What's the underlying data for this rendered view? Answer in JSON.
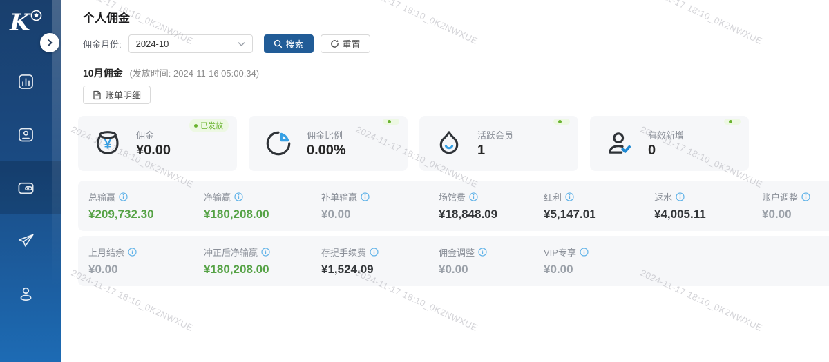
{
  "watermark": {
    "text": "2024-11-17 18:10_0K2NWXUE"
  },
  "sidebar": {
    "logo_text": "K",
    "items": [
      {
        "id": "stats",
        "icon": "bar-chart-icon",
        "active": false
      },
      {
        "id": "members",
        "icon": "id-card-icon",
        "active": false
      },
      {
        "id": "wallet",
        "icon": "wallet-icon",
        "active": true
      },
      {
        "id": "promote",
        "icon": "send-icon",
        "active": false
      },
      {
        "id": "profile",
        "icon": "user-icon",
        "active": false
      }
    ]
  },
  "header": {
    "title": "个人佣金"
  },
  "filter": {
    "label": "佣金月份:",
    "month_value": "2024-10",
    "search_label": "搜索",
    "reset_label": "重置"
  },
  "period": {
    "title": "10月佣金",
    "issue_time": "(发放时间: 2024-11-16 05:00:34)",
    "bill_detail_label": "账单明细"
  },
  "stat_cards": [
    {
      "label": "佣金",
      "value": "¥0.00",
      "icon": "money-pot-icon",
      "badge": "已发放"
    },
    {
      "label": "佣金比例",
      "value": "0.00%",
      "icon": "pie-chart-icon"
    },
    {
      "label": "活跃会员",
      "value": "1",
      "icon": "flame-icon"
    },
    {
      "label": "有效新增",
      "value": "0",
      "icon": "user-check-icon"
    }
  ],
  "summary_rows": [
    [
      {
        "label": "总输赢",
        "value": "¥209,732.30",
        "tone": "green"
      },
      {
        "label": "净输赢",
        "value": "¥180,208.00",
        "tone": "green"
      },
      {
        "label": "补单输赢",
        "value": "¥0.00",
        "tone": "gray",
        "info": true
      },
      {
        "label": "场馆费",
        "value": "¥18,848.09",
        "tone": "dark"
      },
      {
        "label": "红利",
        "value": "¥5,147.01",
        "tone": "dark"
      },
      {
        "label": "返水",
        "value": "¥4,005.11",
        "tone": "dark"
      },
      {
        "label": "账户调整",
        "value": "¥0.00",
        "tone": "gray"
      }
    ],
    [
      {
        "label": "上月结余",
        "value": "¥0.00",
        "tone": "gray"
      },
      {
        "label": "冲正后净输赢",
        "value": "¥180,208.00",
        "tone": "green"
      },
      {
        "label": "存提手续费",
        "value": "¥1,524.09",
        "tone": "dark"
      },
      {
        "label": "佣金调整",
        "value": "¥0.00",
        "tone": "gray",
        "info": true
      },
      {
        "label": "VIP专享",
        "value": "¥0.00",
        "tone": "gray",
        "info": true
      }
    ]
  ],
  "colors": {
    "sidebar_top": "#193f6d",
    "sidebar_bottom": "#1d6bb4",
    "primary_button": "#215c97",
    "positive_green": "#55a245",
    "accent_blue": "#36a0e4",
    "badge_green": "#6ab32f"
  }
}
